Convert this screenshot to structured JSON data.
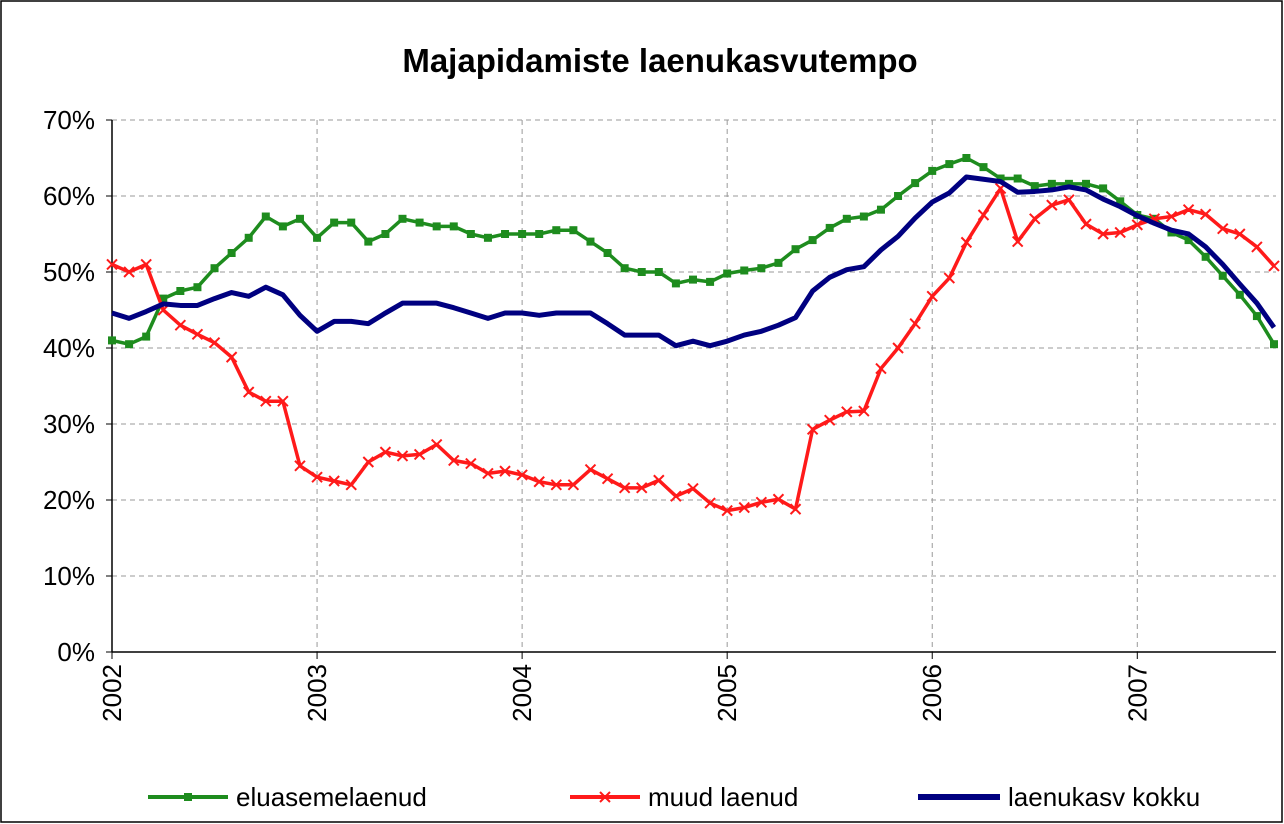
{
  "chart_data": {
    "type": "line",
    "title": "Majapidamiste laenukasvutempo",
    "categories": [
      "2002",
      null,
      null,
      null,
      null,
      null,
      null,
      null,
      null,
      null,
      null,
      null,
      "2003",
      null,
      null,
      null,
      null,
      null,
      null,
      null,
      null,
      null,
      null,
      null,
      "2004",
      null,
      null,
      null,
      null,
      null,
      null,
      null,
      null,
      null,
      null,
      null,
      "2005",
      null,
      null,
      null,
      null,
      null,
      null,
      null,
      null,
      null,
      null,
      null,
      "2006",
      null,
      null,
      null,
      null,
      null,
      null,
      null,
      null,
      null,
      null,
      null,
      "2007",
      null,
      null,
      null,
      null,
      null,
      null,
      null,
      null
    ],
    "series": [
      {
        "name": "eluasemelaenud",
        "color": "#1e8c1e",
        "marker": "square",
        "values": [
          41,
          40.5,
          41.5,
          46.5,
          47.5,
          48,
          50.5,
          52.5,
          54.5,
          57.3,
          56,
          57,
          54.5,
          56.5,
          56.5,
          54,
          55,
          57,
          56.5,
          56,
          56,
          55,
          54.5,
          55,
          55,
          55,
          55.5,
          55.5,
          54,
          52.5,
          50.5,
          50,
          50,
          48.5,
          49,
          48.7,
          49.8,
          50.2,
          50.5,
          51.2,
          53,
          54.2,
          55.8,
          57,
          57.3,
          58.2,
          60,
          61.7,
          63.3,
          64.2,
          65,
          63.8,
          62.3,
          62.3,
          61.3,
          61.6,
          61.6,
          61.6,
          61,
          59.3,
          57.5,
          57,
          55.2,
          54.2,
          52,
          49.5,
          47,
          44.2,
          40.5
        ]
      },
      {
        "name": "muud laenud",
        "color": "#ff1a1a",
        "marker": "x",
        "values": [
          51,
          50,
          51,
          45,
          43,
          41.8,
          40.7,
          38.8,
          34.2,
          33,
          33,
          24.5,
          23,
          22.5,
          22,
          25,
          26.3,
          25.8,
          26,
          27.3,
          25.2,
          24.8,
          23.5,
          23.8,
          23.3,
          22.4,
          22,
          22,
          24,
          22.8,
          21.6,
          21.6,
          22.6,
          20.5,
          21.5,
          19.6,
          18.6,
          19,
          19.7,
          20.1,
          18.8,
          29.3,
          30.5,
          31.6,
          31.7,
          37.3,
          40,
          43.2,
          46.8,
          49.2,
          53.9,
          57.5,
          61,
          54,
          57,
          58.8,
          59.5,
          56.3,
          55,
          55.2,
          56.2,
          57,
          57.3,
          58.2,
          57.6,
          55.7,
          55,
          53.3,
          50.8
        ]
      },
      {
        "name": "laenukasv kokku",
        "color": "#000080",
        "marker": "none",
        "values": [
          44.6,
          43.9,
          44.8,
          45.8,
          45.6,
          45.6,
          46.5,
          47.3,
          46.8,
          48,
          47,
          44.3,
          42.2,
          43.5,
          43.5,
          43.2,
          44.6,
          45.9,
          45.9,
          45.9,
          45.3,
          44.6,
          43.9,
          44.6,
          44.6,
          44.3,
          44.6,
          44.6,
          44.6,
          43.2,
          41.7,
          41.7,
          41.7,
          40.3,
          40.9,
          40.3,
          40.9,
          41.7,
          42.2,
          43,
          44,
          47.5,
          49.3,
          50.3,
          50.7,
          52.9,
          54.7,
          57.1,
          59.2,
          60.4,
          62.5,
          62.2,
          61.9,
          60.5,
          60.6,
          60.8,
          61.2,
          60.8,
          59.6,
          58.6,
          57.4,
          56.4,
          55.5,
          55,
          53.3,
          51,
          48.4,
          45.9,
          42.7
        ]
      }
    ],
    "ylim": [
      0,
      70
    ],
    "yticks": [
      {
        "value": 0,
        "label": "0%"
      },
      {
        "value": 10,
        "label": "10%"
      },
      {
        "value": 20,
        "label": "20%"
      },
      {
        "value": 30,
        "label": "30%"
      },
      {
        "value": 40,
        "label": "40%"
      },
      {
        "value": 50,
        "label": "50%"
      },
      {
        "value": 60,
        "label": "60%"
      },
      {
        "value": 70,
        "label": "70%"
      }
    ],
    "grid": true,
    "legend": "bottom"
  }
}
